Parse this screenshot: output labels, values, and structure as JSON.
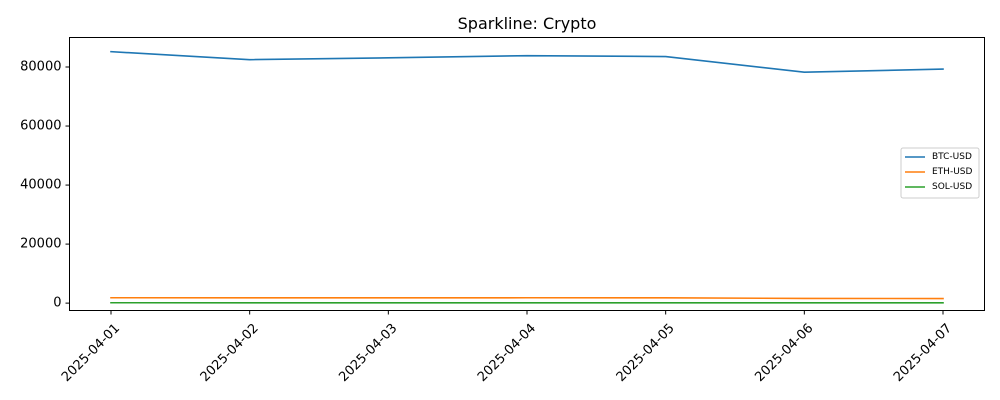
{
  "chart_data": {
    "type": "line",
    "title": "Sparkline: Crypto",
    "xlabel": "",
    "ylabel": "",
    "categories": [
      "2025-04-01",
      "2025-04-02",
      "2025-04-03",
      "2025-04-04",
      "2025-04-05",
      "2025-04-06",
      "2025-04-07"
    ],
    "series": [
      {
        "name": "BTC-USD",
        "color": "#1f77b4",
        "values": [
          85200,
          82500,
          83100,
          83850,
          83550,
          78250,
          79300
        ]
      },
      {
        "name": "ETH-USD",
        "color": "#ff7f0e",
        "values": [
          1820,
          1790,
          1800,
          1815,
          1805,
          1580,
          1560
        ]
      },
      {
        "name": "SOL-USD",
        "color": "#2ca02c",
        "values": [
          125,
          120,
          117,
          119,
          116,
          105,
          106
        ]
      }
    ],
    "ylim": [
      -2500,
      90000
    ],
    "yticks": [
      0,
      20000,
      40000,
      60000,
      80000
    ],
    "grid": false,
    "legend_position": "center-right"
  }
}
